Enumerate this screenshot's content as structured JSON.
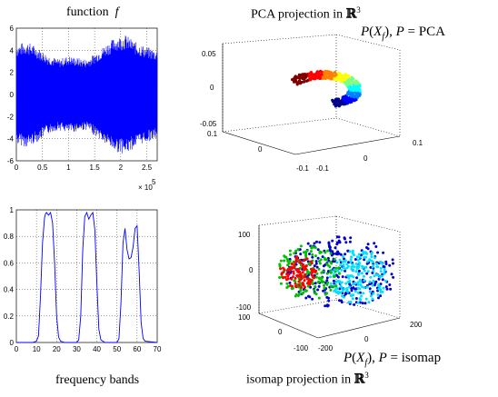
{
  "captions": {
    "top_left": "function",
    "top_left_var": "f",
    "top_right_prefix": "PCA projection in ",
    "top_right_sym": "ℝ",
    "top_right_exp": "3",
    "bottom_left": "frequency bands",
    "bottom_right_prefix": "isomap projection in ",
    "bottom_right_sym": "ℝ",
    "bottom_right_exp": "3",
    "pca_label_P": "P",
    "pca_label_X": "X",
    "pca_label_sub": "f",
    "pca_label_mid": "), ",
    "pca_label_eq": " = PCA",
    "iso_label_P": "P",
    "iso_label_X": "X",
    "iso_label_sub": "f",
    "iso_label_mid": "), ",
    "iso_label_eq": " = isomap"
  },
  "colors": {
    "signal": "#0000ff",
    "pca": [
      "#00008f",
      "#0000ff",
      "#0080ff",
      "#00ffff",
      "#80ff80",
      "#ffff00",
      "#ff8000",
      "#ff0000",
      "#800000"
    ],
    "iso": [
      "#0000c8",
      "#00e0ff",
      "#00c000",
      "#ff0000"
    ]
  },
  "chart_data": [
    {
      "type": "area",
      "x_ticks": [
        "0",
        "0.5",
        "1",
        "1.5",
        "2",
        "2.5"
      ],
      "x_multiplier_base": "× 10",
      "x_multiplier_exp": "5",
      "y_ticks": [
        "6",
        "4",
        "2",
        "0",
        "-2",
        "-4",
        "-6"
      ],
      "xlim": [
        0,
        270000
      ],
      "ylim": [
        -6,
        6
      ],
      "envelope": [
        [
          0,
          4.5
        ],
        [
          20000,
          4.8
        ],
        [
          40000,
          4.3
        ],
        [
          60000,
          3.6
        ],
        [
          80000,
          3.2
        ],
        [
          100000,
          3.5
        ],
        [
          120000,
          3.3
        ],
        [
          135000,
          3.2
        ],
        [
          150000,
          3.7
        ],
        [
          170000,
          4.5
        ],
        [
          190000,
          5.2
        ],
        [
          210000,
          5.4
        ],
        [
          230000,
          4.7
        ],
        [
          250000,
          4.3
        ],
        [
          270000,
          4.0
        ]
      ]
    },
    {
      "type": "scatter",
      "z_ticks": [
        "0.05",
        "0",
        "-0.05"
      ],
      "x_ticks": [
        "-0.1",
        "0",
        "0.1"
      ],
      "y_ticks": [
        "0.1",
        "0",
        "-0.1"
      ]
    },
    {
      "type": "line",
      "x_ticks": [
        "0",
        "10",
        "20",
        "30",
        "40",
        "50",
        "60",
        "70"
      ],
      "y_ticks": [
        "1",
        "0.8",
        "0.6",
        "0.4",
        "0.2",
        "0"
      ],
      "xlim": [
        0,
        70
      ],
      "ylim": [
        0,
        1
      ],
      "x": [
        0,
        8,
        10,
        11,
        12,
        13,
        14,
        14.5,
        15,
        16,
        17,
        18,
        19,
        20,
        21,
        22,
        24,
        30,
        31,
        32,
        33,
        34,
        35,
        36,
        37,
        38,
        39,
        40,
        41,
        42,
        44,
        50,
        51,
        52,
        53,
        54,
        55,
        56,
        57,
        58,
        59,
        60,
        61,
        62,
        63,
        64,
        70
      ],
      "y": [
        0,
        0,
        0.01,
        0.05,
        0.35,
        0.75,
        0.94,
        0.97,
        0.98,
        0.96,
        0.98,
        0.9,
        0.6,
        0.2,
        0.04,
        0.01,
        0,
        0,
        0.02,
        0.2,
        0.7,
        0.95,
        0.98,
        0.93,
        0.96,
        0.98,
        0.85,
        0.45,
        0.1,
        0.02,
        0,
        0,
        0.03,
        0.3,
        0.75,
        0.86,
        0.7,
        0.63,
        0.64,
        0.72,
        0.86,
        0.88,
        0.55,
        0.15,
        0.03,
        0.01,
        0
      ]
    },
    {
      "type": "scatter",
      "z_ticks": [
        "100",
        "0",
        "-100"
      ],
      "x_ticks": [
        "-200",
        "0",
        "200"
      ],
      "y_ticks": [
        "100",
        "0",
        "-100"
      ]
    }
  ]
}
